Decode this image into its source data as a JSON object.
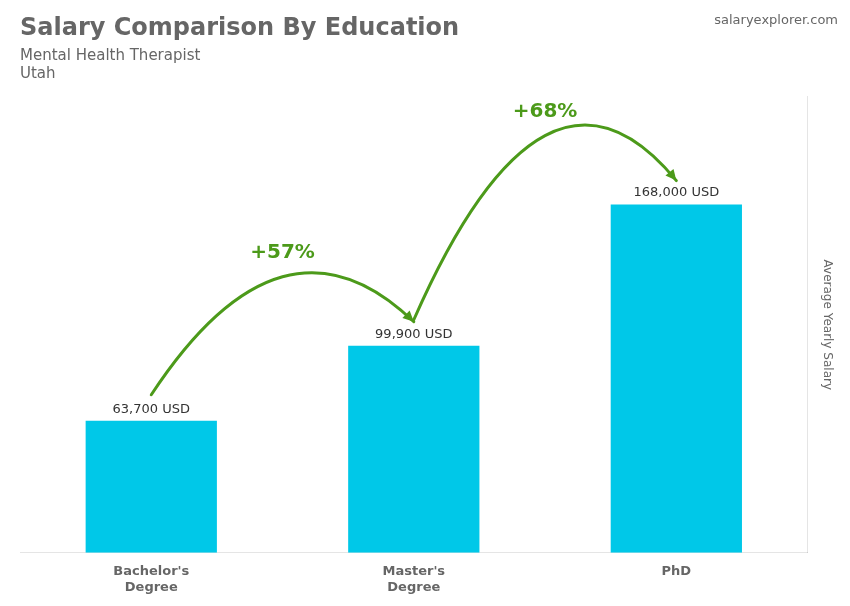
{
  "chart_data": {
    "type": "bar",
    "title": "Salary Comparison By Education",
    "subtitle": [
      "Mental Health Therapist",
      "Utah"
    ],
    "ylabel": "Average Yearly Salary",
    "categories": [
      "Bachelor's\nDegree",
      "Master's\nDegree",
      "PhD"
    ],
    "values": [
      63700,
      99900,
      168000
    ],
    "value_labels": [
      "63,700 USD",
      "99,900 USD",
      "168,000 USD"
    ],
    "data_labels": true,
    "color": "#00c8e8",
    "ylim": [
      0,
      220000
    ],
    "yticks": [],
    "grid": false,
    "tick_labels": "x",
    "annotations": [
      {
        "text": "+57%",
        "from": 0,
        "to": 1
      },
      {
        "text": "+68%",
        "from": 1,
        "to": 2
      },
      {
        "text": "salaryexplorer.com"
      }
    ]
  }
}
